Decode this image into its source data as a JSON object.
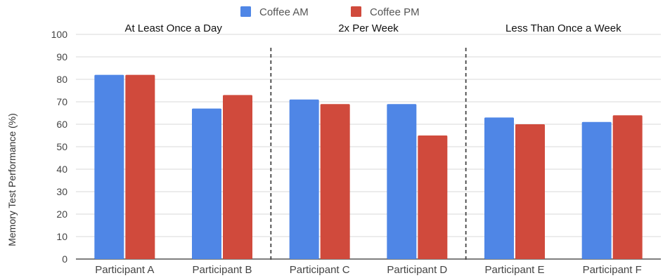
{
  "chart_data": {
    "type": "bar",
    "categories": [
      "Participant A",
      "Participant B",
      "Participant C",
      "Participant D",
      "Participant E",
      "Participant F"
    ],
    "series": [
      {
        "name": "Coffee AM",
        "color": "#4f86e6",
        "values": [
          82,
          67,
          71,
          69,
          63,
          61
        ]
      },
      {
        "name": "Coffee PM",
        "color": "#d04a3c",
        "values": [
          82,
          73,
          69,
          55,
          60,
          64
        ]
      }
    ],
    "ylabel": "Memory Test Performance (%)",
    "ylim": [
      0,
      100
    ],
    "yticks": [
      0,
      10,
      20,
      30,
      40,
      50,
      60,
      70,
      80,
      90,
      100
    ],
    "grid": true,
    "legend_position": "top",
    "groups": [
      {
        "label": "At Least Once a Day",
        "categories": [
          "Participant A",
          "Participant B"
        ]
      },
      {
        "label": "2x Per Week",
        "categories": [
          "Participant C",
          "Participant D"
        ]
      },
      {
        "label": "Less Than Once a Week",
        "categories": [
          "Participant E",
          "Participant F"
        ]
      }
    ],
    "group_separator_style": "dashed"
  }
}
